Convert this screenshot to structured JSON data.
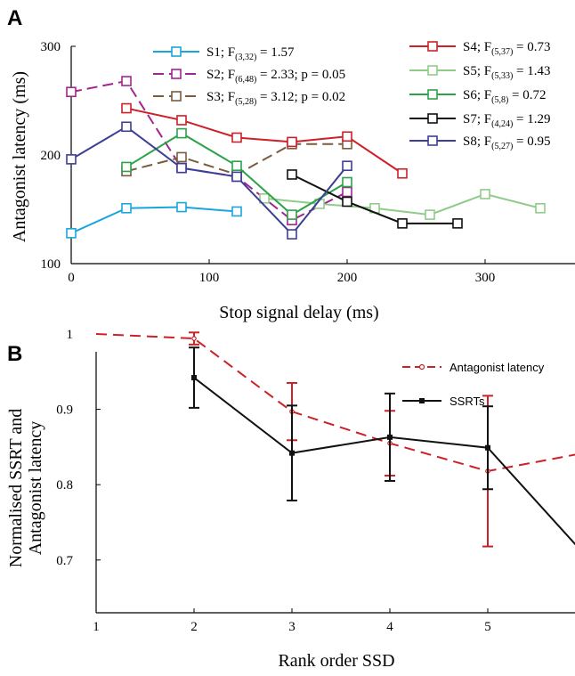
{
  "chart_data": [
    {
      "panel": "A",
      "type": "line",
      "xlabel": "Stop signal delay (ms)",
      "ylabel": "Antagonist latency (ms)",
      "xlim": [
        0,
        350
      ],
      "ylim": [
        100,
        300
      ],
      "xticks": [
        "0",
        "100",
        "200",
        "300"
      ],
      "yticks": [
        "100",
        "200",
        "300"
      ],
      "grid": false,
      "legend_position": "top",
      "series": [
        {
          "name": "S1",
          "stat_prefix": "; F",
          "stat_sub": "(3,32)",
          "stat_rest": " = 1.57",
          "color": "#1aa6dc",
          "dash": false,
          "x": [
            0,
            40,
            80,
            120
          ],
          "y": [
            128,
            151,
            152,
            148
          ]
        },
        {
          "name": "S2",
          "stat_prefix": "; F",
          "stat_sub": "(6,48)",
          "stat_rest": " = 2.33; p = 0.05",
          "color": "#a0268f",
          "dash": true,
          "x": [
            0,
            40,
            80,
            120,
            160,
            200
          ],
          "y": [
            258,
            268,
            188,
            180,
            140,
            166
          ]
        },
        {
          "name": "S3",
          "stat_prefix": "; F",
          "stat_sub": "(5,28)",
          "stat_rest": " = 3.12; p = 0.02",
          "color": "#7b5b3e",
          "dash": true,
          "x": [
            40,
            80,
            120,
            160,
            200
          ],
          "y": [
            185,
            198,
            182,
            210,
            210
          ]
        },
        {
          "name": "S4",
          "stat_prefix": "; F",
          "stat_sub": "(5,37)",
          "stat_rest": " = 0.73",
          "color": "#cc2127",
          "dash": false,
          "x": [
            40,
            80,
            120,
            160,
            200,
            240
          ],
          "y": [
            243,
            232,
            216,
            212,
            217,
            183
          ]
        },
        {
          "name": "S5",
          "stat_prefix": "; F",
          "stat_sub": "(5,33)",
          "stat_rest": " = 1.43",
          "color": "#8fcc8a",
          "dash": false,
          "x": [
            140,
            180,
            220,
            260,
            300,
            340
          ],
          "y": [
            160,
            155,
            151,
            145,
            164,
            151
          ]
        },
        {
          "name": "S6",
          "stat_prefix": "; F",
          "stat_sub": "(5,8)",
          "stat_rest": " = 0.72",
          "color": "#2ea24a",
          "dash": false,
          "x": [
            40,
            80,
            120,
            160,
            200
          ],
          "y": [
            189,
            220,
            190,
            145,
            175
          ]
        },
        {
          "name": "S7",
          "stat_prefix": "; F",
          "stat_sub": "(4,24)",
          "stat_rest": " = 1.29",
          "color": "#111111",
          "dash": false,
          "x": [
            160,
            200,
            240,
            280
          ],
          "y": [
            182,
            157,
            137,
            137
          ]
        },
        {
          "name": "S8",
          "stat_prefix": "; F",
          "stat_sub": "(5,27)",
          "stat_rest": " = 0.95",
          "color": "#3c3f96",
          "dash": false,
          "x": [
            0,
            40,
            80,
            120,
            160,
            200
          ],
          "y": [
            196,
            226,
            188,
            180,
            127,
            190
          ]
        }
      ]
    },
    {
      "panel": "B",
      "type": "line",
      "xlabel": "Rank order SSD",
      "ylabel": "Normalised SSRT and Antagonist latency",
      "ylabel_lines": [
        "Normalised SSRT and",
        "Antagonist latency"
      ],
      "xlim": [
        1,
        5.9
      ],
      "ylim": [
        0.63,
        1.0
      ],
      "xticks": [
        "1",
        "2",
        "3",
        "4",
        "5"
      ],
      "yticks": [
        "0.7",
        "0.8",
        "0.9",
        "1"
      ],
      "grid": false,
      "legend_position": "top-right",
      "series": [
        {
          "name": "Antagonist latency",
          "color": "#cc2127",
          "dash": true,
          "marker": "circle",
          "x": [
            1,
            2,
            3,
            4,
            5,
            5.9
          ],
          "y": [
            1.0,
            0.994,
            0.897,
            0.855,
            0.818,
            0.84
          ],
          "err": [
            null,
            0.008,
            0.038,
            0.043,
            0.1,
            null
          ]
        },
        {
          "name": "SSRTs",
          "color": "#111111",
          "dash": false,
          "marker": "square",
          "x": [
            2,
            3,
            4,
            5,
            5.9
          ],
          "y": [
            0.942,
            0.842,
            0.863,
            0.849,
            0.72
          ],
          "err": [
            0.04,
            0.063,
            0.058,
            0.055,
            null
          ]
        }
      ]
    }
  ],
  "labels": {
    "panelA": "A",
    "panelB": "B"
  }
}
